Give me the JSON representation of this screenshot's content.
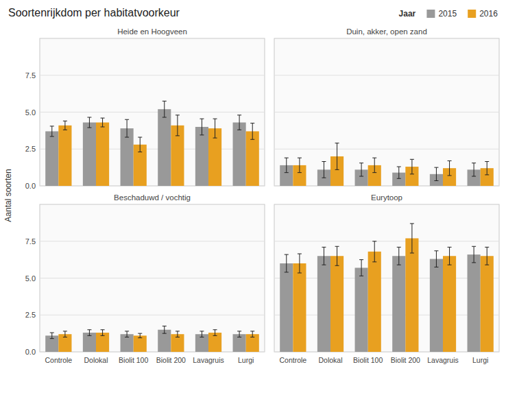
{
  "title": "Soortenrijkdom per habitatvoorkeur",
  "ylabel": "Aantal soorten",
  "legend_title": "Jaar",
  "chart_data": [
    {
      "type": "bar",
      "title": "Heide en Hoogveen",
      "categories": [
        "Controle",
        "Dolokal",
        "Biolit 100",
        "Biolit 200",
        "Lavagruis",
        "Lurgi"
      ],
      "series": [
        {
          "name": "2015",
          "color": "#999999",
          "values": [
            3.7,
            4.3,
            3.9,
            5.2,
            4.0,
            4.3
          ],
          "errors": [
            0.35,
            0.35,
            0.6,
            0.55,
            0.55,
            0.5
          ]
        },
        {
          "name": "2016",
          "color": "#E8A020",
          "values": [
            4.1,
            4.3,
            2.8,
            4.1,
            3.9,
            3.7
          ],
          "errors": [
            0.3,
            0.3,
            0.5,
            0.7,
            0.65,
            0.55
          ]
        }
      ],
      "ylim": [
        0,
        10
      ],
      "yticks": [
        {
          "value": 0,
          "label": "0.0"
        },
        2.5,
        {
          "value": 5,
          "label": "5.0"
        },
        7.5
      ],
      "grid": true,
      "legend": "top",
      "tick_labels": "y"
    },
    {
      "type": "bar",
      "title": "Duin, akker, open zand",
      "categories": [
        "Controle",
        "Dolokal",
        "Biolit 100",
        "Biolit 200",
        "Lavagruis",
        "Lurgi"
      ],
      "series": [
        {
          "name": "2015",
          "color": "#999999",
          "values": [
            1.4,
            1.1,
            1.1,
            0.9,
            0.8,
            1.1
          ],
          "errors": [
            0.5,
            0.55,
            0.45,
            0.4,
            0.45,
            0.45
          ]
        },
        {
          "name": "2016",
          "color": "#E8A020",
          "values": [
            1.4,
            2.0,
            1.4,
            1.3,
            1.2,
            1.2
          ],
          "errors": [
            0.5,
            0.9,
            0.5,
            0.5,
            0.5,
            0.45
          ]
        }
      ],
      "ylim": [
        0,
        10
      ],
      "yticks": [
        {
          "value": 0,
          "label": "0.0"
        },
        2.5,
        {
          "value": 5,
          "label": "5.0"
        },
        7.5
      ],
      "grid": true,
      "tick_labels": false
    },
    {
      "type": "bar",
      "title": "Beschaduwd / vochtig",
      "categories": [
        "Controle",
        "Dolokal",
        "Biolit 100",
        "Biolit 200",
        "Lavagruis",
        "Lurgi"
      ],
      "series": [
        {
          "name": "2015",
          "color": "#999999",
          "values": [
            1.1,
            1.3,
            1.2,
            1.5,
            1.2,
            1.2
          ],
          "errors": [
            0.2,
            0.2,
            0.2,
            0.25,
            0.2,
            0.2
          ]
        },
        {
          "name": "2016",
          "color": "#E8A020",
          "values": [
            1.2,
            1.3,
            1.1,
            1.2,
            1.3,
            1.2
          ],
          "errors": [
            0.2,
            0.2,
            0.15,
            0.2,
            0.2,
            0.2
          ]
        }
      ],
      "ylim": [
        0,
        10
      ],
      "yticks": [
        {
          "value": 0,
          "label": "0.0"
        },
        2.5,
        {
          "value": 5,
          "label": "5.0"
        },
        7.5
      ],
      "grid": true
    },
    {
      "type": "bar",
      "title": "Eurytoop",
      "categories": [
        "Controle",
        "Dolokal",
        "Biolit 100",
        "Biolit 200",
        "Lavagruis",
        "Lurgi"
      ],
      "series": [
        {
          "name": "2015",
          "color": "#999999",
          "values": [
            6.0,
            6.5,
            5.7,
            6.5,
            6.3,
            6.6
          ],
          "errors": [
            0.6,
            0.6,
            0.55,
            0.6,
            0.55,
            0.55
          ]
        },
        {
          "name": "2016",
          "color": "#E8A020",
          "values": [
            6.0,
            6.5,
            6.8,
            7.7,
            6.5,
            6.5
          ],
          "errors": [
            0.65,
            0.65,
            0.7,
            1.0,
            0.6,
            0.6
          ]
        }
      ],
      "ylim": [
        0,
        10
      ],
      "yticks": [
        {
          "value": 0,
          "label": "0.0"
        },
        2.5,
        {
          "value": 5,
          "label": "5.0"
        },
        7.5
      ],
      "grid": true,
      "tick_labels": "x"
    }
  ]
}
